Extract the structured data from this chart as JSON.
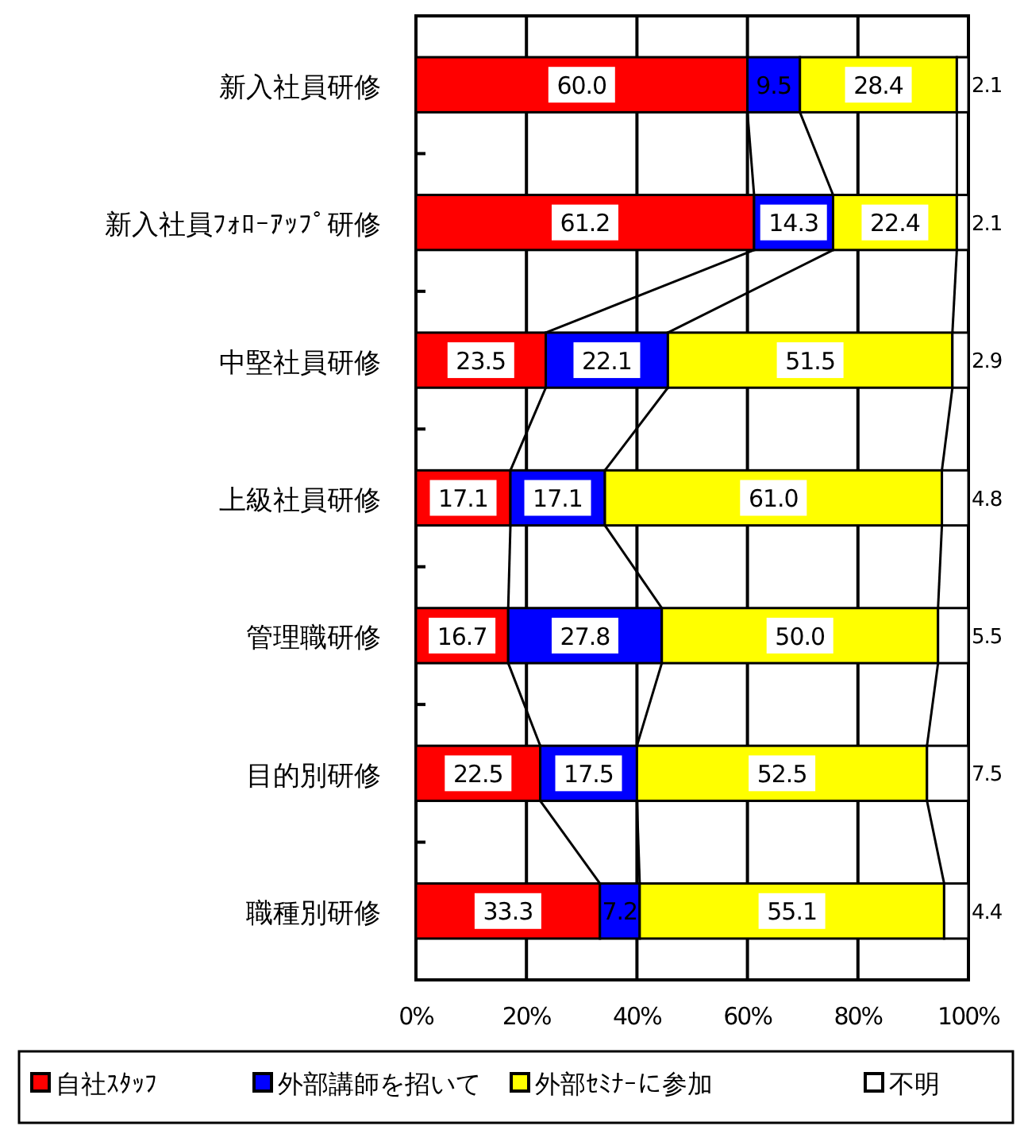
{
  "chart_data": {
    "type": "bar",
    "orientation": "horizontal",
    "stacked": true,
    "grid": "x",
    "legend": "bottom",
    "categories": [
      "新入社員研修",
      "新入社員ﾌｫﾛｰｱｯﾌﾟ研修",
      "中堅社員研修",
      "上級社員研修",
      "管理職研修",
      "目的別研修",
      "職種別研修"
    ],
    "xlim": [
      0,
      100
    ],
    "xticks": [
      {
        "value": 0,
        "label": "0%"
      },
      {
        "value": 20,
        "label": "20%"
      },
      {
        "value": 40,
        "label": "40%"
      },
      {
        "value": 60,
        "label": "60%"
      },
      {
        "value": 80,
        "label": "80%"
      },
      {
        "value": 100,
        "label": "100%"
      }
    ],
    "series": [
      {
        "name": "自社ｽﾀｯﾌ",
        "color": "#ff0000",
        "values": [
          60.0,
          61.2,
          23.5,
          17.1,
          16.7,
          22.5,
          33.3
        ],
        "value_labels": [
          "60.0",
          "61.2",
          "23.5",
          "17.1",
          "16.7",
          "22.5",
          "33.3"
        ]
      },
      {
        "name": "外部講師を招いて",
        "color": "#0000ff",
        "values": [
          9.5,
          14.3,
          22.1,
          17.1,
          27.8,
          17.5,
          7.2
        ],
        "value_labels": [
          "9.5",
          "14.3",
          "22.1",
          "17.1",
          "27.8",
          "17.5",
          "7.2"
        ]
      },
      {
        "name": "外部ｾﾐﾅｰに参加",
        "color": "#ffff00",
        "values": [
          28.4,
          22.4,
          51.5,
          61.0,
          50.0,
          52.5,
          55.1
        ],
        "value_labels": [
          "28.4",
          "22.4",
          "51.5",
          "61.0",
          "50.0",
          "52.5",
          "55.1"
        ]
      },
      {
        "name": "不明",
        "color": "#ffffff",
        "values": [
          2.1,
          2.1,
          2.9,
          4.8,
          5.5,
          7.5,
          4.4
        ],
        "value_labels": [
          "2.1",
          "2.1",
          "2.9",
          "4.8",
          "5.5",
          "7.5",
          "4.4"
        ]
      }
    ]
  }
}
